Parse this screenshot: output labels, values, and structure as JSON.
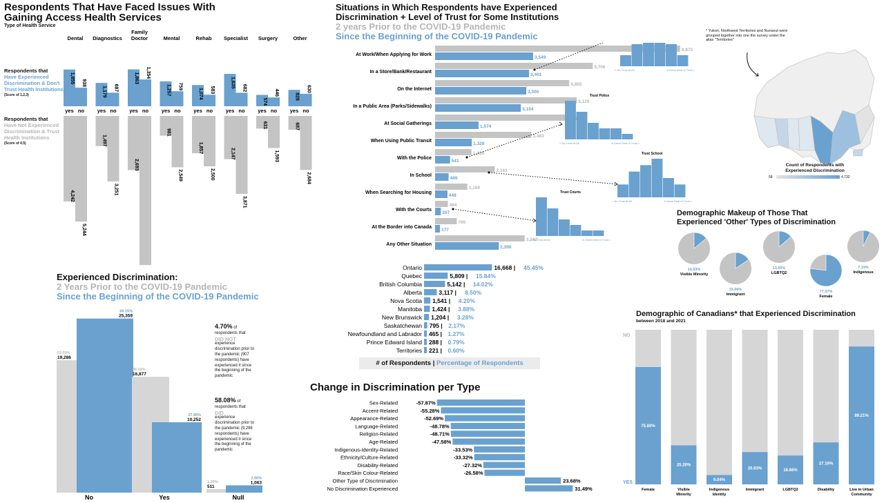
{
  "colors": {
    "blue": "#6aa1cf",
    "gray": "#c4c4c4",
    "light_gray": "#d6d6d6",
    "dark": "#111111"
  },
  "panel1": {
    "title_line1": "Respondents That Have Faced Issues With",
    "title_line2": "Gaining Access Health Services",
    "subtitle": "Type of Health Service",
    "row1_label": "Respondents that",
    "row1_highlight": "Have Experienced Discrimination & Don't Trust Health Institutions",
    "row1_score": "(Score of 1,2,3)",
    "row2_label": "Respondents that",
    "row2_highlight": "Have Not Experienced Discrimination & Trust Health Institutions",
    "row2_score": "(Score of 4,5)",
    "yes_label": "yes",
    "no_label": "no"
  },
  "panel2": {
    "title_line1": "Situations in Which Respondents have Experienced",
    "title_line2": "Discrimination + Level of Trust for Some Institutions",
    "legend_gray": "2 years Prior to the COVID-19 Pandemic",
    "legend_blue": "Since the Beginning of the COVID-19 Pandemic"
  },
  "trust_charts": [
    {
      "title": "Trust Banks",
      "left_label": "< No Trust At All",
      "right_label": "A Great Deal of Trust >",
      "values": [
        2,
        4,
        6,
        7,
        4,
        2
      ]
    },
    {
      "title": "Trust Police",
      "left_label": "< No Trust At All",
      "right_label": "A Great Deal of Trust >",
      "values": [
        7,
        5,
        3,
        2,
        2,
        1
      ]
    },
    {
      "title": "Trust School",
      "left_label": "< No Trust At All",
      "right_label": "A Great Deal of Trust >",
      "values": [
        2,
        4,
        5,
        6,
        3,
        2
      ]
    },
    {
      "title": "Trust Courts",
      "left_label": "< No Trust At All",
      "right_label": "A Great Deal of Trust >",
      "values": [
        7,
        5,
        3,
        2,
        1,
        1
      ]
    }
  ],
  "map": {
    "note": "* Yukon, Northwest Territories and Nunavut were grouped together into one the survey under the alias \"Territories\"",
    "legend_title_line1": "Count of Respondents with",
    "legend_title_line2": "Experienced Discrimination",
    "legend_min": "58",
    "legend_max": "4,732"
  },
  "panel3": {
    "title": "Experienced Discrimination:",
    "legend_gray": "2 Years Prior to the COVID-19 Pandemic",
    "legend_blue": "Since the Beginning of the COVID-19 Pandemic",
    "note1_pct": "4.70%",
    "note1_of": " of",
    "note1_line1": "respondents that",
    "note1_highlight": "DID NOT",
    "note1_rest": [
      "experience",
      "discrimination prior to",
      "the pandemic (907",
      "respondents) have",
      "experienced it since",
      "the beginning of the",
      "pandemic"
    ],
    "note2_pct": "58.08%",
    "note2_of": " of",
    "note2_line1": "respondents that",
    "note2_highlight": "DID",
    "note2_rest": [
      "experience",
      "discrimination prior to",
      "the pandemic (9,296",
      "respondents) have",
      "experienced it since",
      "the beginning of the",
      "pandemic"
    ]
  },
  "panel4": {
    "legend_counts": "# of Respondents |",
    "legend_pct": "Percentage of Respondents"
  },
  "panel5": {
    "title": "Change in Discrimination per Type"
  },
  "panel6": {
    "title_line1": "Demographic Makeup of Those That",
    "title_line2": "Experienced 'Other' Types of Discrimination"
  },
  "panel7": {
    "title": "Demographic of Canadians* that Experienced Discrimination",
    "subtitle": "between 2018 and 2021",
    "no_label": "NO",
    "yes_label": "YES"
  },
  "chart_data": [
    {
      "type": "bar",
      "title": "Respondents That Have Faced Issues With Gaining Access Health Services",
      "xlabel": "Type of Health Service",
      "categories": [
        "Dental",
        "Diagnostics",
        "Family Doctor",
        "Mental",
        "Rehab",
        "Specialist",
        "Surgery",
        "Other"
      ],
      "series": [
        {
          "name": "Have Experienced Discrimination & Don't Trust Health Institutions - yes",
          "values": [
            1855,
            1179,
            1863,
            1257,
            1074,
            1635,
            574,
            828
          ]
        },
        {
          "name": "Have Experienced Discrimination & Don't Trust Health Institutions - no",
          "values": [
            938,
            687,
            1354,
            759,
            583,
            682,
            446,
            630
          ]
        },
        {
          "name": "Have Not Experienced Discrimination & Trust Health Institutions - yes",
          "values": [
            4242,
            1497,
            2693,
            981,
            1857,
            2147,
            631,
            687
          ]
        },
        {
          "name": "Have Not Experienced Discrimination & Trust Health Institutions - no",
          "values": [
            5244,
            3251,
            7402,
            2549,
            2500,
            3871,
            1593,
            2684
          ]
        }
      ],
      "value_labels": {
        "top_yes": [
          "1,855",
          "1,179",
          "1,863",
          "1,257",
          "1,074",
          "1,635",
          "574",
          "828"
        ],
        "top_no": [
          "938",
          "687",
          "1,354",
          "759",
          "583",
          "682",
          "446",
          "630"
        ],
        "bottom_yes": [
          "4,242",
          "1,497",
          "2,693",
          "981",
          "1,857",
          "2,147",
          "631",
          "687"
        ],
        "bottom_no": [
          "5,244",
          "3,251",
          "7,402",
          "2,549",
          "2,500",
          "3,871",
          "1,593",
          "2,684"
        ]
      },
      "category_lines": [
        [
          "Dental"
        ],
        [
          "Diagnostics"
        ],
        [
          "Family",
          "Doctor"
        ],
        [
          "Mental"
        ],
        [
          "Rehab"
        ],
        [
          "Specialist"
        ],
        [
          "Surgery"
        ],
        [
          "Other"
        ]
      ]
    },
    {
      "type": "bar",
      "title": "Situations in Which Respondents have Experienced Discrimination",
      "categories": [
        "At Work/When Applying for Work",
        "In a Store/Bank/Restaurant",
        "On the Internet",
        "In a Public Area (Parks/Sidewalks)",
        "At Social Gatherings",
        "When Using Public Transit",
        "With the Police",
        "In School",
        "When Searching for Housing",
        "With the Courts",
        "At the Border into Canada",
        "Any Other Situation"
      ],
      "series": [
        {
          "name": "2 years Prior to the COVID-19 Pandemic",
          "values": [
            8873,
            5706,
            4855,
            5129,
            4848,
            3483,
            1318,
            2161,
            1169,
            464,
            785,
            3242
          ],
          "labels": [
            "8,873",
            "5,706",
            "4,855",
            "5,129",
            "4,848",
            "3,483",
            "1,318",
            "2,161",
            "1,169",
            "464",
            "785",
            "3,242"
          ]
        },
        {
          "name": "Since the Beginning of the COVID-19 Pandemic",
          "values": [
            3549,
            3401,
            3300,
            3104,
            1574,
            1328,
            541,
            489,
            448,
            207,
            177,
            2306
          ],
          "labels": [
            "3,549",
            "3,401",
            "3,300",
            "3,104",
            "1,574",
            "1,328",
            "541",
            "489",
            "448",
            "207",
            "177",
            "2,306"
          ]
        }
      ]
    },
    {
      "type": "bar",
      "title": "Experienced Discrimination",
      "categories": [
        "No",
        "Yes",
        "Null"
      ],
      "series": [
        {
          "name": "2 Years Prior to the COVID-19 Pandemic",
          "values": [
            19286,
            16877,
            511
          ],
          "labels": [
            "19,286",
            "16,877",
            "511"
          ],
          "pct": [
            "53.59%",
            "46.02%",
            "1.39%"
          ]
        },
        {
          "name": "Since the Beginning of the COVID-19 Pandemic",
          "values": [
            25359,
            10252,
            1063
          ],
          "labels": [
            "25,359",
            "10,252",
            "1,063"
          ],
          "pct": [
            "69.15%",
            "27.95%",
            "2.90%"
          ]
        }
      ]
    },
    {
      "type": "bar",
      "title": "# of Respondents | Percentage of Respondents",
      "categories": [
        "Ontario",
        "Quebec",
        "British Columbia",
        "Alberta",
        "Nova Scotia",
        "Manitoba",
        "New Brunswick",
        "Saskatchewan",
        "Newfoundland and Labrador",
        "Prince Edward Island",
        "Territories"
      ],
      "values": [
        16668,
        5809,
        5142,
        3117,
        1541,
        1424,
        1204,
        795,
        465,
        288,
        221
      ],
      "labels": [
        "16,668",
        "5,809",
        "5,142",
        "3,117",
        "1,541",
        "1,424",
        "1,204",
        "795",
        "465",
        "288",
        "221"
      ],
      "percentages": [
        "45.45%",
        "15.84%",
        "14.02%",
        "8.50%",
        "4.20%",
        "3.88%",
        "3.28%",
        "2.17%",
        "1.27%",
        "0.79%",
        "0.60%"
      ]
    },
    {
      "type": "bar",
      "title": "Change in Discrimination per Type",
      "categories": [
        "Sex-Related",
        "Accent-Related",
        "Appearance-Related",
        "Language-Related",
        "Religion-Related",
        "Age-Related",
        "Indigenous-Identity-Related",
        "Ethnicity/Culture-Related",
        "Disability-Related",
        "Race/Skin Colour-Related",
        "Other Type of Discrimination",
        "No Discrimination Experienced"
      ],
      "values": [
        -57.87,
        -55.28,
        -52.69,
        -48.78,
        -48.71,
        -47.58,
        -33.53,
        -33.32,
        -27.32,
        -26.58,
        23.68,
        31.49
      ],
      "labels": [
        "-57.87%",
        "-55.28%",
        "-52.69%",
        "-48.78%",
        "-48.71%",
        "-47.58%",
        "-33.53%",
        "-33.32%",
        "-27.32%",
        "-26.58%",
        "23.68%",
        "31.49%"
      ]
    },
    {
      "type": "pie",
      "title": "Demographic Makeup of Those That Experienced 'Other' Types of Discrimination",
      "categories": [
        "Visible Minority",
        "Immigrant",
        "LGBTQ2",
        "Indigenous",
        "Female"
      ],
      "values": [
        14.03,
        15.66,
        13.55,
        7.19,
        77.07
      ],
      "labels": [
        "14.03%",
        "15.66%",
        "13.55%",
        "7.19%",
        "77.07%"
      ]
    },
    {
      "type": "bar",
      "title": "Demographic of Canadians* that Experienced Discrimination",
      "categories": [
        "Female",
        "Visible Minority",
        "Indigenous Identity",
        "Immigrant",
        "LGBTQ2",
        "Disability",
        "Live in Urban Community"
      ],
      "category_lines": [
        [
          "Female"
        ],
        [
          "Visible",
          "Minority"
        ],
        [
          "Indigenous",
          "Identity"
        ],
        [
          "Immigrant"
        ],
        [
          "LGBTQ2"
        ],
        [
          "Disability"
        ],
        [
          "Live in Urban",
          "Community"
        ]
      ],
      "values": [
        75.89,
        25.26,
        6.04,
        20.93,
        18.68,
        27.16,
        89.21
      ],
      "labels": [
        "75.89%",
        "25.26%",
        "6.04%",
        "20.93%",
        "18.68%",
        "27.16%",
        "89.21%"
      ],
      "ylim": [
        0,
        100
      ]
    }
  ]
}
